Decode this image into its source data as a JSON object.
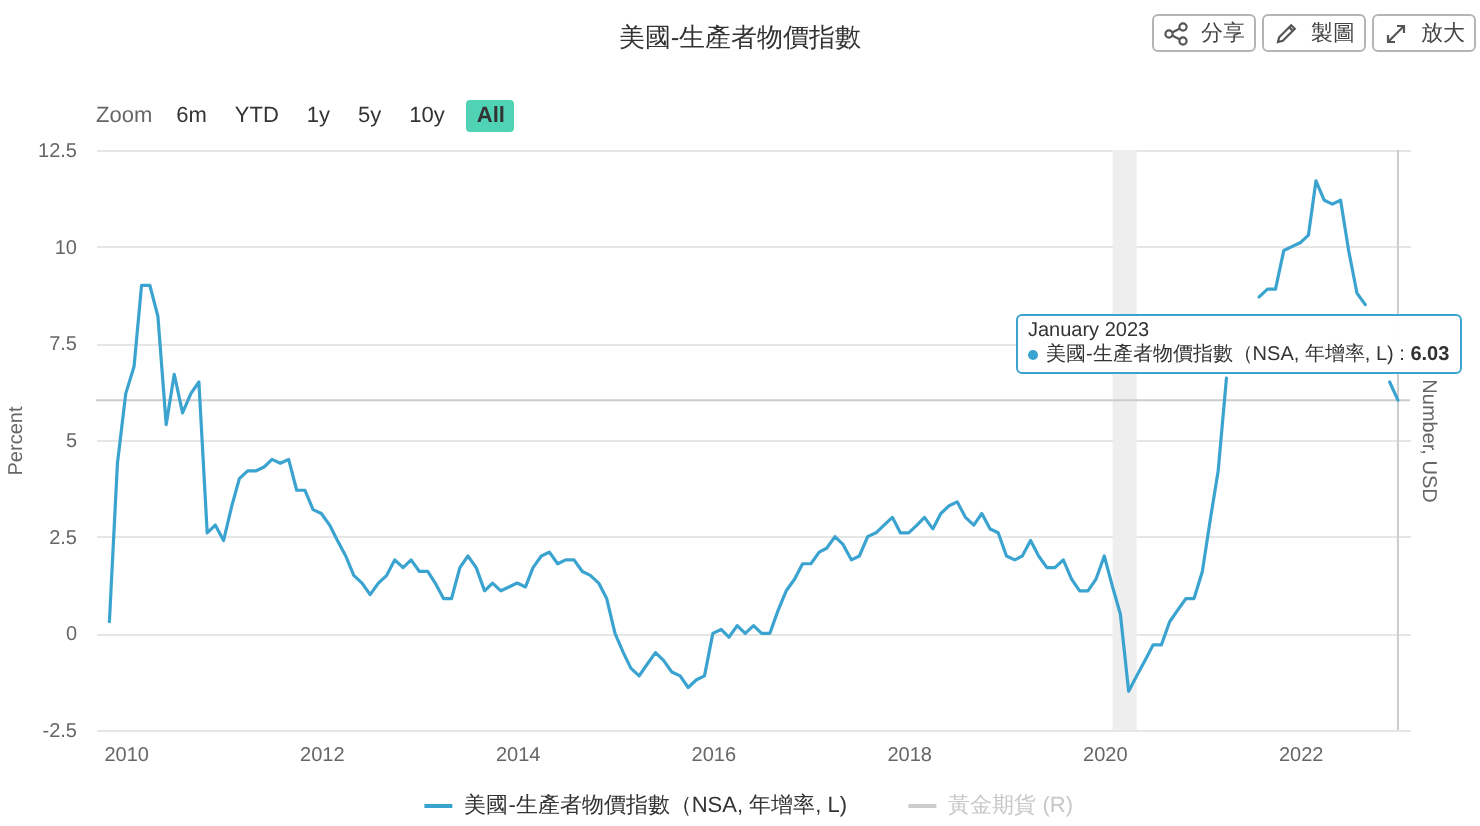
{
  "chart_data": {
    "type": "line",
    "title": "美國-生產者物價指數",
    "ylabel": "Percent",
    "y2label": "Number, USD",
    "x": [
      "2009-11",
      "2009-12",
      "2010-01",
      "2010-02",
      "2010-03",
      "2010-04",
      "2010-05",
      "2010-06",
      "2010-07",
      "2010-08",
      "2010-09",
      "2010-10",
      "2010-11",
      "2010-12",
      "2011-01",
      "2011-02",
      "2011-03",
      "2011-04",
      "2011-05",
      "2011-06",
      "2011-07",
      "2011-08",
      "2011-09",
      "2011-10",
      "2011-11",
      "2011-12",
      "2012-01",
      "2012-02",
      "2012-03",
      "2012-04",
      "2012-05",
      "2012-06",
      "2012-07",
      "2012-08",
      "2012-09",
      "2012-10",
      "2012-11",
      "2012-12",
      "2013-01",
      "2013-02",
      "2013-03",
      "2013-04",
      "2013-05",
      "2013-06",
      "2013-07",
      "2013-08",
      "2013-09",
      "2013-10",
      "2013-11",
      "2013-12",
      "2014-01",
      "2014-02",
      "2014-03",
      "2014-04",
      "2014-05",
      "2014-06",
      "2014-07",
      "2014-08",
      "2014-09",
      "2014-10",
      "2014-11",
      "2014-12",
      "2015-01",
      "2015-02",
      "2015-03",
      "2015-04",
      "2015-05",
      "2015-06",
      "2015-07",
      "2015-08",
      "2015-09",
      "2015-10",
      "2015-11",
      "2015-12",
      "2016-01",
      "2016-02",
      "2016-03",
      "2016-04",
      "2016-05",
      "2016-06",
      "2016-07",
      "2016-08",
      "2016-09",
      "2016-10",
      "2016-11",
      "2016-12",
      "2017-01",
      "2017-02",
      "2017-03",
      "2017-04",
      "2017-05",
      "2017-06",
      "2017-07",
      "2017-08",
      "2017-09",
      "2017-10",
      "2017-11",
      "2017-12",
      "2018-01",
      "2018-02",
      "2018-03",
      "2018-04",
      "2018-05",
      "2018-06",
      "2018-07",
      "2018-08",
      "2018-09",
      "2018-10",
      "2018-11",
      "2018-12",
      "2019-01",
      "2019-02",
      "2019-03",
      "2019-04",
      "2019-05",
      "2019-06",
      "2019-07",
      "2019-08",
      "2019-09",
      "2019-10",
      "2019-11",
      "2019-12",
      "2020-01",
      "2020-02",
      "2020-03",
      "2020-04",
      "2020-05",
      "2020-06",
      "2020-07",
      "2020-08",
      "2020-09",
      "2020-10",
      "2020-11",
      "2020-12",
      "2021-01",
      "2021-02",
      "2021-03",
      "2021-04",
      "2021-05",
      "2021-06",
      "2021-07",
      "2021-08",
      "2021-09",
      "2021-10",
      "2021-11",
      "2021-12",
      "2022-01",
      "2022-02",
      "2022-03",
      "2022-04",
      "2022-05",
      "2022-06",
      "2022-07",
      "2022-08",
      "2022-09",
      "2022-10",
      "2022-11",
      "2022-12",
      "2023-01"
    ],
    "series": [
      {
        "name": "美國-生產者物價指數（NSA, 年增率, L)",
        "color": "#3ba3cf",
        "values": [
          0.3,
          4.4,
          6.2,
          6.9,
          9.0,
          9.0,
          8.2,
          5.4,
          6.7,
          5.7,
          6.2,
          6.5,
          2.6,
          2.8,
          2.4,
          3.3,
          4.0,
          4.2,
          4.2,
          4.3,
          4.5,
          4.4,
          4.5,
          3.7,
          3.7,
          3.2,
          3.1,
          2.8,
          2.4,
          2.0,
          1.5,
          1.3,
          1.0,
          1.3,
          1.5,
          1.9,
          1.7,
          1.9,
          1.6,
          1.6,
          1.3,
          0.9,
          0.9,
          1.7,
          2.0,
          1.7,
          1.1,
          1.3,
          1.1,
          1.2,
          1.3,
          1.2,
          1.7,
          2.0,
          2.1,
          1.8,
          1.9,
          1.9,
          1.6,
          1.5,
          1.3,
          0.9,
          0.0,
          -0.5,
          -0.9,
          -1.1,
          -0.8,
          -0.5,
          -0.7,
          -1.0,
          -1.1,
          -1.4,
          -1.2,
          -1.1,
          0.0,
          0.1,
          -0.1,
          0.2,
          0.0,
          0.2,
          0.0,
          0.0,
          0.6,
          1.1,
          1.4,
          1.8,
          1.8,
          2.1,
          2.2,
          2.5,
          2.3,
          1.9,
          2.0,
          2.5,
          2.6,
          2.8,
          3.0,
          2.6,
          2.6,
          2.8,
          3.0,
          2.7,
          3.1,
          3.3,
          3.4,
          3.0,
          2.8,
          3.1,
          2.7,
          2.6,
          2.0,
          1.9,
          2.0,
          2.4,
          2.0,
          1.7,
          1.7,
          1.9,
          1.4,
          1.1,
          1.1,
          1.4,
          2.0,
          1.2,
          0.5,
          -1.5,
          -1.1,
          -0.7,
          -0.3,
          -0.3,
          0.3,
          0.6,
          0.9,
          0.9,
          1.6,
          3.0,
          4.2,
          6.6,
          null,
          null,
          null,
          8.7,
          8.9,
          8.9,
          9.9,
          10.0,
          10.1,
          10.3,
          11.7,
          11.2,
          11.1,
          11.2,
          9.9,
          8.8,
          8.5,
          null,
          null,
          6.5,
          6.03
        ]
      },
      {
        "name": "黃金期貨 (R)",
        "color": "#cccccc",
        "axis": "y2",
        "values": [
          null,
          null,
          null,
          null,
          null,
          null,
          null,
          null,
          null,
          null,
          null,
          null,
          null,
          null,
          null,
          null,
          null,
          null,
          null,
          null,
          null,
          null,
          null,
          null,
          null,
          null,
          null,
          null,
          null,
          null,
          null,
          null,
          null,
          null,
          null,
          null,
          null,
          null,
          null,
          null,
          null,
          null,
          null,
          null,
          null,
          null,
          null,
          null,
          null,
          null,
          null,
          null,
          null,
          null,
          null,
          null,
          null,
          null,
          null,
          null,
          null,
          null,
          null,
          null,
          null,
          null,
          null,
          null,
          null,
          null,
          null,
          null,
          null,
          null,
          null,
          null,
          null,
          null,
          null,
          null,
          null,
          null,
          null,
          null,
          null,
          null,
          null,
          null,
          null,
          null,
          null,
          null,
          null,
          null,
          null,
          null,
          null,
          null,
          null,
          null,
          null,
          null,
          null,
          null,
          null,
          null,
          null,
          null,
          null,
          null,
          null,
          null,
          null,
          null,
          null,
          null,
          null,
          null,
          null,
          null,
          null,
          null,
          null,
          null,
          null,
          null,
          null,
          null,
          null,
          null,
          null,
          null,
          null,
          null,
          null,
          null,
          null,
          null,
          null,
          null,
          null,
          null,
          null,
          null,
          null,
          null,
          null,
          null,
          null,
          null,
          null,
          null,
          null,
          null,
          null,
          null,
          null,
          null,
          null
        ]
      }
    ],
    "xlim": [
      "2009-09-12",
      "2023-02-15"
    ],
    "xticks": [
      "2010",
      "2012",
      "2014",
      "2016",
      "2018",
      "2020",
      "2022"
    ],
    "ylim": [
      -2.5,
      12.5
    ],
    "yticks": [
      -2.5,
      0,
      2.5,
      5,
      7.5,
      10,
      12.5
    ],
    "grid": "y",
    "legend": "bottom",
    "bands": [
      {
        "axis": "x",
        "from": "2020-02",
        "to": "2020-05",
        "color": "#eeeeee"
      }
    ],
    "ref_lines": [
      {
        "axis": "x",
        "value": "2023-01",
        "color": "#cccccc"
      },
      {
        "axis": "y",
        "value": 6.03,
        "color": "#cccccc"
      }
    ],
    "annotations": [
      "Zoom",
      "6m",
      "YTD",
      "1y",
      "5y",
      "10y",
      "All",
      "分享",
      "製圖",
      "放大",
      "January 2023",
      "美國-生產者物價指數（NSA, 年增率, L) : 6.03"
    ]
  }
}
